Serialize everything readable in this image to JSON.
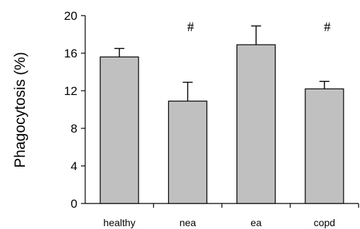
{
  "chart_data": {
    "type": "bar",
    "categories": [
      "healthy",
      "nea",
      "ea",
      "copd"
    ],
    "values": [
      15.6,
      10.9,
      16.9,
      12.2
    ],
    "error_bars": [
      0.9,
      2.0,
      2.0,
      0.8
    ],
    "annotations": [
      "",
      "#",
      "",
      "#"
    ],
    "ylabel": "Phagocytosis (%)",
    "xlabel": "",
    "ylim": [
      0,
      20
    ],
    "yticks": [
      0,
      4,
      8,
      12,
      16,
      20
    ],
    "grid": false,
    "legend": "none",
    "colors": {
      "bar_fill": "#c0c0c0",
      "bar_stroke": "#000000",
      "axis": "#000000"
    }
  }
}
